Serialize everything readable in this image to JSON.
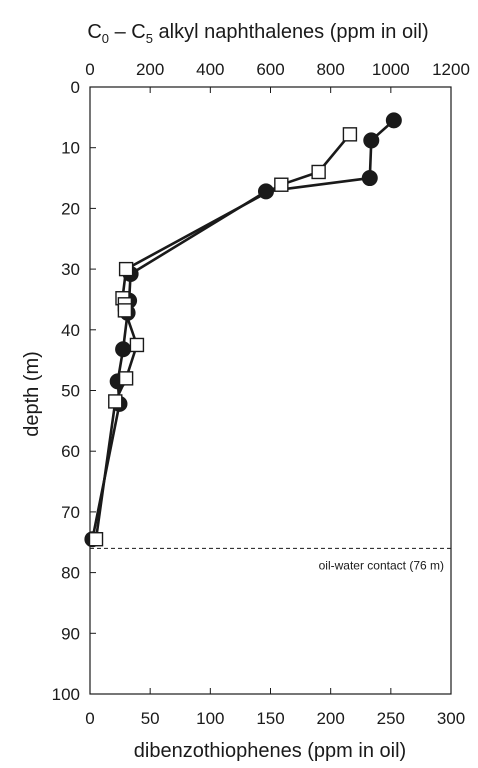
{
  "chart_data": {
    "type": "line",
    "top_axis": {
      "title_prefix": "C",
      "title_sub1": "0",
      "title_mid": " – C",
      "title_sub2": "5",
      "title_suffix": " alkyl naphthalenes (ppm in oil)",
      "xlim": [
        0,
        1200
      ],
      "ticks": [
        "0",
        "200",
        "400",
        "600",
        "800",
        "1000",
        "1200"
      ]
    },
    "bottom_axis": {
      "title": "dibenzothiophenes (ppm in oil)",
      "xlim": [
        0,
        300
      ],
      "ticks": [
        "0",
        "50",
        "100",
        "150",
        "200",
        "250",
        "300"
      ]
    },
    "y_axis": {
      "title": "depth (m)",
      "ylim": [
        0,
        100
      ],
      "inverted": true,
      "ticks": [
        "0",
        "10",
        "20",
        "30",
        "40",
        "50",
        "60",
        "70",
        "80",
        "90",
        "100"
      ]
    },
    "grid": false,
    "series": [
      {
        "axis": "top",
        "marker": "filled-circle",
        "color": "#1a1a1a",
        "points": [
          {
            "x": 1010,
            "depth": 5.5
          },
          {
            "x": 935,
            "depth": 8.8
          },
          {
            "x": 930,
            "depth": 15
          },
          {
            "x": 585,
            "depth": 17.2
          },
          {
            "x": 135,
            "depth": 30.8
          },
          {
            "x": 130,
            "depth": 35.2
          },
          {
            "x": 125,
            "depth": 37.2
          },
          {
            "x": 110,
            "depth": 43.2
          },
          {
            "x": 92,
            "depth": 48.5
          },
          {
            "x": 98,
            "depth": 52.2
          },
          {
            "x": 8,
            "depth": 74.5
          }
        ]
      },
      {
        "axis": "bottom",
        "marker": "open-square",
        "color": "#1a1a1a",
        "points": [
          {
            "x": 216,
            "depth": 7.8
          },
          {
            "x": 190,
            "depth": 14.0
          },
          {
            "x": 159,
            "depth": 16.1
          },
          {
            "x": 30,
            "depth": 30.0
          },
          {
            "x": 27,
            "depth": 34.8
          },
          {
            "x": 29,
            "depth": 35.8
          },
          {
            "x": 29,
            "depth": 36.8
          },
          {
            "x": 39,
            "depth": 42.5
          },
          {
            "x": 30,
            "depth": 48.0
          },
          {
            "x": 21,
            "depth": 51.8
          },
          {
            "x": 5,
            "depth": 74.5
          }
        ]
      }
    ],
    "annotation": {
      "label": "oil-water contact (76 m)",
      "depth": 76,
      "style": "dashed"
    }
  }
}
